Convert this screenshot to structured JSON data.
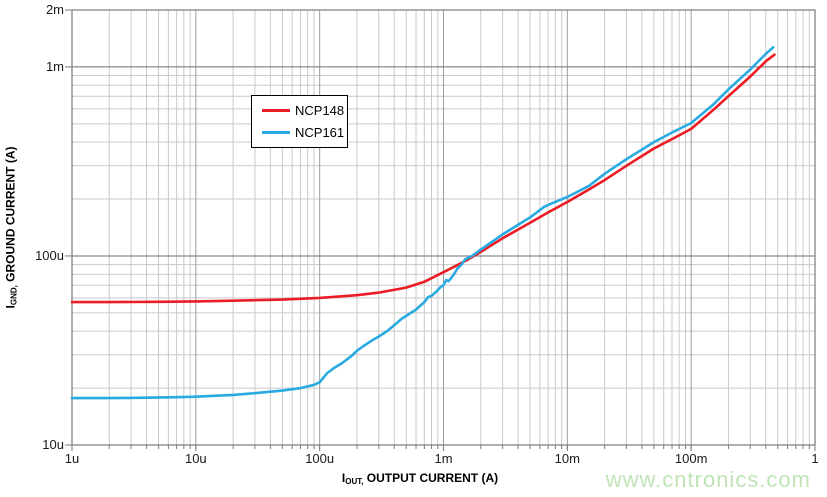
{
  "watermark": {
    "text": "www.cntronics.com",
    "color": "#c0e4b6"
  },
  "chart_data": {
    "type": "line",
    "title": "",
    "x_scale": "log",
    "y_scale": "log",
    "xlim": [
      1e-06,
      1
    ],
    "ylim": [
      1e-05,
      0.002
    ],
    "xlabel": {
      "pre": "I",
      "sub": "OUT,",
      "post": " OUTPUT CURRENT (A)"
    },
    "ylabel": {
      "pre": "I",
      "sub": "GND,",
      "post": " GROUND CURRENT (A)"
    },
    "x_ticks": [
      {
        "value": 1e-06,
        "label": "1u"
      },
      {
        "value": 1e-05,
        "label": "10u"
      },
      {
        "value": 0.0001,
        "label": "100u"
      },
      {
        "value": 0.001,
        "label": "1m"
      },
      {
        "value": 0.01,
        "label": "10m"
      },
      {
        "value": 0.1,
        "label": "100m"
      },
      {
        "value": 1,
        "label": "1"
      }
    ],
    "y_ticks": [
      {
        "value": 1e-05,
        "label": "10u"
      },
      {
        "value": 0.0001,
        "label": "100u"
      },
      {
        "value": 0.001,
        "label": "1m"
      },
      {
        "value": 0.002,
        "label": "2m"
      }
    ],
    "grid": {
      "minor": true,
      "minor_color": "#c9c9c9",
      "major_v_color": "#9d9d9d",
      "major_h_color": "#6e6e6e",
      "border_color": "#7a7a7a"
    },
    "legend": {
      "position": "upper-left-inside"
    },
    "series": [
      {
        "name": "NCP148",
        "color": "#ed1c24",
        "points": [
          [
            1e-06,
            5.7e-05
          ],
          [
            2e-06,
            5.7e-05
          ],
          [
            5e-06,
            5.72e-05
          ],
          [
            1e-05,
            5.75e-05
          ],
          [
            2e-05,
            5.8e-05
          ],
          [
            5e-05,
            5.88e-05
          ],
          [
            0.0001,
            6e-05
          ],
          [
            0.0002,
            6.2e-05
          ],
          [
            0.0003,
            6.4e-05
          ],
          [
            0.0005,
            6.8e-05
          ],
          [
            0.0007,
            7.3e-05
          ],
          [
            0.001,
            8.2e-05
          ],
          [
            0.0015,
            9.4e-05
          ],
          [
            0.002,
            0.000105
          ],
          [
            0.003,
            0.000124
          ],
          [
            0.005,
            0.00015
          ],
          [
            0.007,
            0.00017
          ],
          [
            0.01,
            0.000193
          ],
          [
            0.015,
            0.000225
          ],
          [
            0.02,
            0.000252
          ],
          [
            0.03,
            0.0003
          ],
          [
            0.05,
            0.00037
          ],
          [
            0.07,
            0.000415
          ],
          [
            0.1,
            0.00047
          ],
          [
            0.15,
            0.00059
          ],
          [
            0.2,
            0.0007
          ],
          [
            0.3,
            0.00089
          ],
          [
            0.4,
            0.00107
          ],
          [
            0.47,
            0.00116
          ]
        ]
      },
      {
        "name": "NCP161",
        "color": "#29abe2",
        "points": [
          [
            1e-06,
            1.77e-05
          ],
          [
            2e-06,
            1.77e-05
          ],
          [
            4e-06,
            1.78e-05
          ],
          [
            7e-06,
            1.79e-05
          ],
          [
            1e-05,
            1.8e-05
          ],
          [
            2e-05,
            1.84e-05
          ],
          [
            3e-05,
            1.88e-05
          ],
          [
            5e-05,
            1.94e-05
          ],
          [
            7e-05,
            2e-05
          ],
          [
            9e-05,
            2.08e-05
          ],
          [
            0.0001,
            2.15e-05
          ],
          [
            0.000115,
            2.4e-05
          ],
          [
            0.00013,
            2.55e-05
          ],
          [
            0.00015,
            2.7e-05
          ],
          [
            0.00018,
            2.95e-05
          ],
          [
            0.0002,
            3.15e-05
          ],
          [
            0.00022,
            3.3e-05
          ],
          [
            0.00026,
            3.55e-05
          ],
          [
            0.0003,
            3.75e-05
          ],
          [
            0.00035,
            4e-05
          ],
          [
            0.0004,
            4.3e-05
          ],
          [
            0.00046,
            4.65e-05
          ],
          [
            0.00052,
            4.9e-05
          ],
          [
            0.0006,
            5.2e-05
          ],
          [
            0.0007,
            5.7e-05
          ],
          [
            0.00075,
            6.05e-05
          ],
          [
            0.0008,
            6.15e-05
          ],
          [
            0.00088,
            6.5e-05
          ],
          [
            0.00095,
            6.85e-05
          ],
          [
            0.001,
            7e-05
          ],
          [
            0.00105,
            7.45e-05
          ],
          [
            0.0011,
            7.35e-05
          ],
          [
            0.0012,
            7.9e-05
          ],
          [
            0.0013,
            8.6e-05
          ],
          [
            0.0014,
            9e-05
          ],
          [
            0.0015,
            9.6e-05
          ],
          [
            0.0017,
            0.0001
          ],
          [
            0.002,
            0.000108
          ],
          [
            0.003,
            0.00013
          ],
          [
            0.005,
            0.00016
          ],
          [
            0.0065,
            0.000182
          ],
          [
            0.0075,
            0.00019
          ],
          [
            0.01,
            0.000205
          ],
          [
            0.015,
            0.000235
          ],
          [
            0.02,
            0.000272
          ],
          [
            0.03,
            0.000325
          ],
          [
            0.05,
            0.0004
          ],
          [
            0.07,
            0.00045
          ],
          [
            0.1,
            0.000505
          ],
          [
            0.15,
            0.00063
          ],
          [
            0.2,
            0.00076
          ],
          [
            0.3,
            0.00097
          ],
          [
            0.4,
            0.00117
          ],
          [
            0.46,
            0.00127
          ]
        ]
      }
    ]
  }
}
